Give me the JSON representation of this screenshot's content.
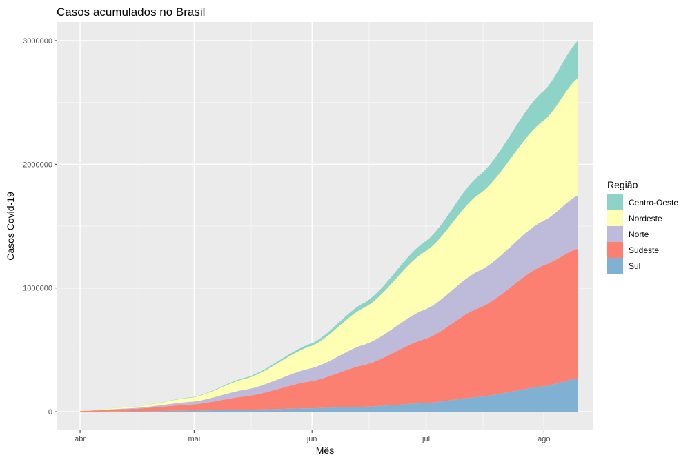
{
  "chart_data": {
    "type": "area",
    "stacked": true,
    "title": "Casos acumulados no Brasil",
    "xlabel": "Mês",
    "ylabel": "Casos Covid-19",
    "x_ticks": [
      "abr",
      "mai",
      "jun",
      "jul",
      "ago"
    ],
    "y_ticks": [
      0,
      1000000,
      2000000,
      3000000
    ],
    "ylim": [
      -150000,
      3150000
    ],
    "grid": true,
    "legend": {
      "title": "Região",
      "placement": "right"
    },
    "x": [
      "2020-04-01",
      "2020-04-15",
      "2020-05-01",
      "2020-05-15",
      "2020-06-01",
      "2020-06-15",
      "2020-07-01",
      "2020-07-15",
      "2020-08-01",
      "2020-08-10"
    ],
    "series": [
      {
        "name": "Sul",
        "color": "#80b1d3",
        "values": [
          0,
          3000,
          9000,
          16000,
          28000,
          40000,
          70000,
          120000,
          205000,
          270000
        ]
      },
      {
        "name": "Sudeste",
        "color": "#fb8072",
        "values": [
          5000,
          20000,
          50000,
          110000,
          220000,
          340000,
          520000,
          720000,
          980000,
          1050000
        ]
      },
      {
        "name": "Norte",
        "color": "#bebada",
        "values": [
          1000,
          6000,
          23000,
          55000,
          105000,
          165000,
          240000,
          300000,
          360000,
          430000
        ]
      },
      {
        "name": "Nordeste",
        "color": "#ffffb3",
        "values": [
          2000,
          10000,
          35000,
          90000,
          180000,
          300000,
          470000,
          620000,
          810000,
          950000
        ]
      },
      {
        "name": "Centro-Oeste",
        "color": "#8dd3c7",
        "values": [
          500,
          1000,
          3000,
          9000,
          20000,
          40000,
          80000,
          150000,
          240000,
          300000
        ]
      }
    ],
    "legend_order": [
      "Centro-Oeste",
      "Nordeste",
      "Norte",
      "Sudeste",
      "Sul"
    ]
  }
}
